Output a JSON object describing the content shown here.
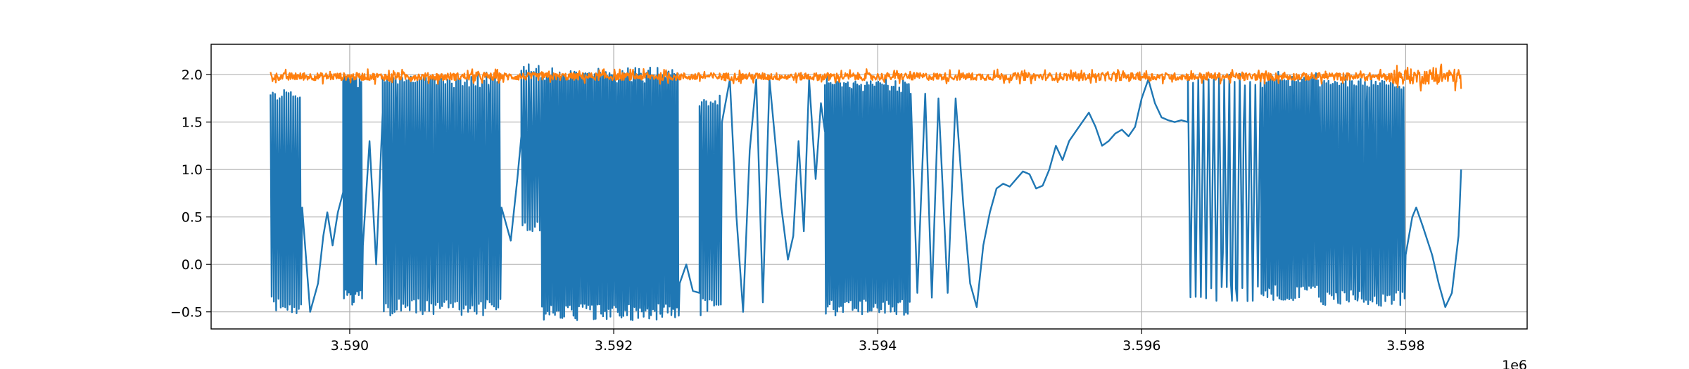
{
  "chart_data": {
    "type": "line",
    "title": "",
    "xlabel": "",
    "ylabel": "",
    "x_offset_label": "1e6",
    "xlim": [
      3588950,
      3598920
    ],
    "ylim": [
      -0.68,
      2.32
    ],
    "x_ticks": [
      3590000,
      3592000,
      3594000,
      3596000,
      3598000
    ],
    "x_tick_labels": [
      "3.590",
      "3.592",
      "3.594",
      "3.596",
      "3.598"
    ],
    "y_ticks": [
      -0.5,
      0.0,
      0.5,
      1.0,
      1.5,
      2.0
    ],
    "y_tick_labels": [
      "−0.5",
      "0.0",
      "0.5",
      "1.0",
      "1.5",
      "2.0"
    ],
    "grid": true,
    "legend": "none",
    "series": [
      {
        "color": "#1f77b4",
        "x_start": 3589400,
        "x_end": 3598420,
        "segments": [
          {
            "x0": 3589400,
            "x1": 3589640,
            "kind": "osc",
            "lo": -0.43,
            "hi": 1.78,
            "n": 14
          },
          {
            "x0": 3589640,
            "x1": 3589950,
            "kind": "wave",
            "points": [
              [
                3589640,
                0.6
              ],
              [
                3589700,
                -0.5
              ],
              [
                3589760,
                -0.2
              ],
              [
                3589800,
                0.3
              ],
              [
                3589830,
                0.55
              ],
              [
                3589870,
                0.2
              ],
              [
                3589910,
                0.55
              ],
              [
                3589950,
                0.76
              ]
            ]
          },
          {
            "x0": 3589950,
            "x1": 3590100,
            "kind": "osc",
            "lo": -0.35,
            "hi": 1.95,
            "n": 12
          },
          {
            "x0": 3590100,
            "x1": 3590250,
            "kind": "wave",
            "points": [
              [
                3590100,
                0.2
              ],
              [
                3590150,
                1.3
              ],
              [
                3590200,
                0.0
              ],
              [
                3590250,
                1.6
              ]
            ]
          },
          {
            "x0": 3590250,
            "x1": 3591150,
            "kind": "osc",
            "lo": -0.45,
            "hi": 1.95,
            "n": 55
          },
          {
            "x0": 3591150,
            "x1": 3591300,
            "kind": "wave",
            "points": [
              [
                3591150,
                0.6
              ],
              [
                3591220,
                0.25
              ],
              [
                3591270,
                0.9
              ],
              [
                3591300,
                1.35
              ]
            ]
          },
          {
            "x0": 3591300,
            "x1": 3591450,
            "kind": "osc",
            "lo": 0.4,
            "hi": 2.05,
            "n": 8
          },
          {
            "x0": 3591450,
            "x1": 3592500,
            "kind": "osc",
            "lo": -0.5,
            "hi": 2.0,
            "n": 75
          },
          {
            "x0": 3592500,
            "x1": 3592650,
            "kind": "wave",
            "points": [
              [
                3592500,
                -0.2
              ],
              [
                3592550,
                0.0
              ],
              [
                3592600,
                -0.28
              ],
              [
                3592650,
                -0.3
              ]
            ]
          },
          {
            "x0": 3592650,
            "x1": 3592820,
            "kind": "osc",
            "lo": -0.45,
            "hi": 1.7,
            "n": 10
          },
          {
            "x0": 3592820,
            "x1": 3593600,
            "kind": "wave",
            "points": [
              [
                3592820,
                1.5
              ],
              [
                3592880,
                1.95
              ],
              [
                3592930,
                0.5
              ],
              [
                3592980,
                -0.5
              ],
              [
                3593030,
                1.2
              ],
              [
                3593080,
                1.95
              ],
              [
                3593130,
                -0.4
              ],
              [
                3593180,
                1.95
              ],
              [
                3593230,
                1.2
              ],
              [
                3593270,
                0.6
              ],
              [
                3593320,
                0.05
              ],
              [
                3593360,
                0.3
              ],
              [
                3593400,
                1.3
              ],
              [
                3593440,
                0.35
              ],
              [
                3593480,
                1.95
              ],
              [
                3593530,
                0.9
              ],
              [
                3593570,
                1.7
              ],
              [
                3593600,
                1.4
              ]
            ]
          },
          {
            "x0": 3593600,
            "x1": 3594250,
            "kind": "osc",
            "lo": -0.45,
            "hi": 1.9,
            "n": 45
          },
          {
            "x0": 3594250,
            "x1": 3594900,
            "kind": "wave",
            "points": [
              [
                3594250,
                1.8
              ],
              [
                3594300,
                -0.3
              ],
              [
                3594360,
                1.8
              ],
              [
                3594410,
                -0.35
              ],
              [
                3594460,
                1.75
              ],
              [
                3594530,
                -0.3
              ],
              [
                3594590,
                1.75
              ],
              [
                3594650,
                0.6
              ],
              [
                3594700,
                -0.2
              ],
              [
                3594750,
                -0.45
              ],
              [
                3594800,
                0.2
              ],
              [
                3594850,
                0.55
              ],
              [
                3594900,
                0.8
              ]
            ]
          },
          {
            "x0": 3594900,
            "x1": 3596000,
            "kind": "wave",
            "points": [
              [
                3594900,
                0.8
              ],
              [
                3594950,
                0.85
              ],
              [
                3595000,
                0.82
              ],
              [
                3595050,
                0.9
              ],
              [
                3595100,
                0.98
              ],
              [
                3595150,
                0.95
              ],
              [
                3595200,
                0.8
              ],
              [
                3595250,
                0.83
              ],
              [
                3595300,
                1.0
              ],
              [
                3595350,
                1.25
              ],
              [
                3595400,
                1.1
              ],
              [
                3595450,
                1.3
              ],
              [
                3595500,
                1.4
              ],
              [
                3595550,
                1.5
              ],
              [
                3595600,
                1.6
              ],
              [
                3595650,
                1.45
              ],
              [
                3595700,
                1.25
              ],
              [
                3595750,
                1.3
              ],
              [
                3595800,
                1.38
              ],
              [
                3595850,
                1.42
              ],
              [
                3595900,
                1.35
              ],
              [
                3595950,
                1.45
              ],
              [
                3596000,
                1.75
              ]
            ]
          },
          {
            "x0": 3596000,
            "x1": 3596350,
            "kind": "wave",
            "points": [
              [
                3596000,
                1.75
              ],
              [
                3596050,
                1.95
              ],
              [
                3596100,
                1.7
              ],
              [
                3596150,
                1.55
              ],
              [
                3596200,
                1.52
              ],
              [
                3596250,
                1.5
              ],
              [
                3596300,
                1.52
              ],
              [
                3596350,
                1.5
              ]
            ]
          },
          {
            "x0": 3596350,
            "x1": 3596900,
            "kind": "osc",
            "lo": -0.3,
            "hi": 1.95,
            "n": 14
          },
          {
            "x0": 3596900,
            "x1": 3597350,
            "kind": "osc",
            "lo": -0.3,
            "hi": 1.95,
            "n": 30
          },
          {
            "x0": 3597350,
            "x1": 3598000,
            "kind": "osc",
            "lo": -0.35,
            "hi": 1.9,
            "n": 40
          },
          {
            "x0": 3598000,
            "x1": 3598420,
            "kind": "wave",
            "points": [
              [
                3598000,
                0.1
              ],
              [
                3598050,
                0.5
              ],
              [
                3598080,
                0.6
              ],
              [
                3598130,
                0.4
              ],
              [
                3598200,
                0.1
              ],
              [
                3598250,
                -0.2
              ],
              [
                3598300,
                -0.45
              ],
              [
                3598350,
                -0.3
              ],
              [
                3598400,
                0.3
              ],
              [
                3598420,
                1.0
              ]
            ]
          }
        ]
      },
      {
        "color": "#ff7f0e",
        "x_start": 3589400,
        "x_end": 3598420,
        "mean": 1.98,
        "noise_amplitude": 0.05,
        "tail_noise_amplitude": 0.1,
        "tail_start": 3597900,
        "end_value": 1.85
      }
    ]
  }
}
